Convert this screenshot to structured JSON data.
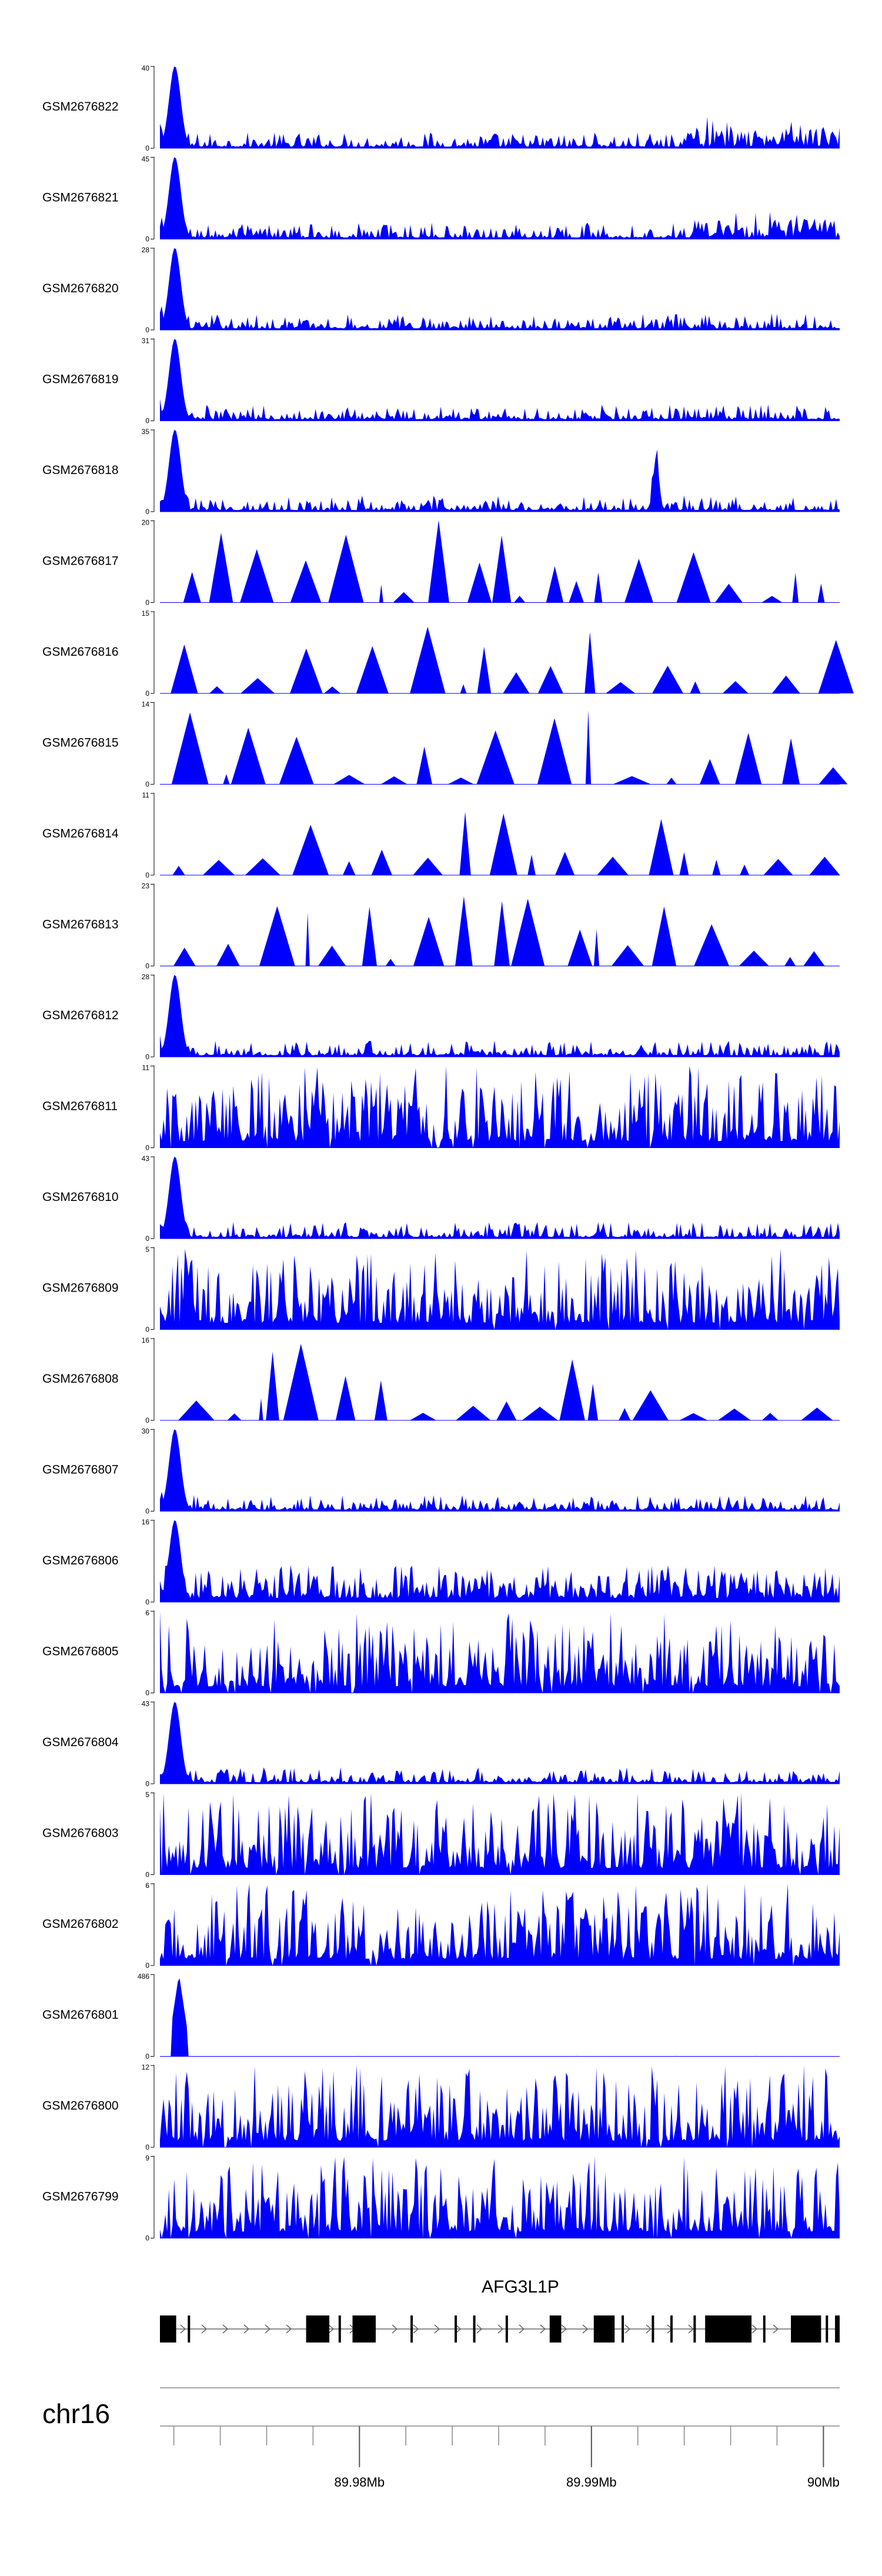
{
  "chart_data": {
    "type": "area",
    "title": "",
    "chromosome": "chr16",
    "x_axis": {
      "range_start_mb": 89.9714,
      "range_end_mb": 90.0007,
      "major_ticks": [
        {
          "value": 89.98,
          "label": "89.98Mb"
        },
        {
          "value": 89.99,
          "label": "89.99Mb"
        },
        {
          "value": 90.0,
          "label": "90Mb"
        }
      ],
      "minor_tick_step_mb": 0.002
    },
    "series": [
      {
        "name": "GSM2676822",
        "ymax": "40",
        "profile": "peak_left_right_rise",
        "color": "#0000ff"
      },
      {
        "name": "GSM2676821",
        "ymax": "45",
        "profile": "peak_left_right_rise",
        "color": "#0000ff"
      },
      {
        "name": "GSM2676820",
        "ymax": "28",
        "profile": "peak_left_low_noise",
        "color": "#0000ff"
      },
      {
        "name": "GSM2676819",
        "ymax": "31",
        "profile": "peak_left_low_noise",
        "color": "#0000ff"
      },
      {
        "name": "GSM2676818",
        "ymax": "35",
        "profile": "peak_left_secondary_peak",
        "color": "#0000ff"
      },
      {
        "name": "GSM2676817",
        "ymax": "20",
        "profile": "sparse_triangles",
        "color": "#0000ff"
      },
      {
        "name": "GSM2676816",
        "ymax": "15",
        "profile": "sparse_triangles",
        "color": "#0000ff"
      },
      {
        "name": "GSM2676815",
        "ymax": "14",
        "profile": "sparse_triangles",
        "color": "#0000ff"
      },
      {
        "name": "GSM2676814",
        "ymax": "11",
        "profile": "sparse_triangles",
        "color": "#0000ff"
      },
      {
        "name": "GSM2676813",
        "ymax": "23",
        "profile": "sparse_triangles",
        "color": "#0000ff"
      },
      {
        "name": "GSM2676812",
        "ymax": "28",
        "profile": "peak_left_low_noise",
        "color": "#0000ff"
      },
      {
        "name": "GSM2676811",
        "ymax": "11",
        "profile": "dense_noise",
        "color": "#0000ff"
      },
      {
        "name": "GSM2676810",
        "ymax": "43",
        "profile": "peak_left_low_noise",
        "color": "#0000ff"
      },
      {
        "name": "GSM2676809",
        "ymax": "5",
        "profile": "dense_noise",
        "color": "#0000ff"
      },
      {
        "name": "GSM2676808",
        "ymax": "16",
        "profile": "sparse_triangles",
        "color": "#0000ff"
      },
      {
        "name": "GSM2676807",
        "ymax": "30",
        "profile": "peak_left_low_noise",
        "color": "#0000ff"
      },
      {
        "name": "GSM2676806",
        "ymax": "16",
        "profile": "peak_left_medium_noise",
        "color": "#0000ff"
      },
      {
        "name": "GSM2676805",
        "ymax": "6",
        "profile": "dense_noise",
        "color": "#0000ff"
      },
      {
        "name": "GSM2676804",
        "ymax": "43",
        "profile": "peak_left_low_noise",
        "color": "#0000ff"
      },
      {
        "name": "GSM2676803",
        "ymax": "5",
        "profile": "dense_noise",
        "color": "#0000ff"
      },
      {
        "name": "GSM2676802",
        "ymax": "6",
        "profile": "dense_noise",
        "color": "#0000ff"
      },
      {
        "name": "GSM2676801",
        "ymax": "486",
        "profile": "single_sharp_peak",
        "color": "#0000ff"
      },
      {
        "name": "GSM2676800",
        "ymax": "12",
        "profile": "dense_noise",
        "color": "#0000ff"
      },
      {
        "name": "GSM2676799",
        "ymax": "9",
        "profile": "dense_noise",
        "color": "#0000ff"
      }
    ],
    "y_min_label": "0",
    "gene": {
      "name": "AFG3L1P",
      "exons_mb": [
        [
          89.9714,
          89.9721
        ],
        [
          89.9726,
          89.9727
        ],
        [
          89.9719,
          89.972
        ],
        [
          89.9777,
          89.9787
        ],
        [
          89.9791,
          89.9792
        ],
        [
          89.9797,
          89.9807
        ],
        [
          89.9822,
          89.9823
        ],
        [
          89.9841,
          89.9842
        ],
        [
          89.9849,
          89.985
        ],
        [
          89.9863,
          89.9864
        ],
        [
          89.9882,
          89.9887
        ],
        [
          89.9901,
          89.991
        ],
        [
          89.9913,
          89.9914
        ],
        [
          89.9926,
          89.9927
        ],
        [
          89.9934,
          89.9935
        ],
        [
          89.9944,
          89.9945
        ],
        [
          89.9949,
          89.9969
        ],
        [
          89.9974,
          89.9975
        ],
        [
          89.9986,
          89.9999
        ],
        [
          90.0001,
          90.0002
        ],
        [
          90.0005,
          90.0007
        ]
      ]
    }
  }
}
